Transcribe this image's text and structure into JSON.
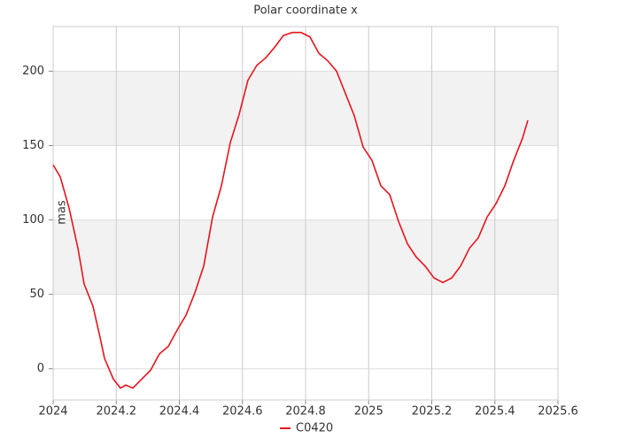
{
  "chart_data": {
    "type": "line",
    "title": "Polar coordinate x",
    "y_label": "mas",
    "x": [
      2024.0,
      2024.0225,
      2024.0505,
      2024.0786,
      2024.0982,
      2024.1263,
      2024.1488,
      2024.1628,
      2024.1909,
      2024.2133,
      2024.2302,
      2024.2526,
      2024.2807,
      2024.3088,
      2024.3368,
      2024.3649,
      2024.393,
      2024.4211,
      2024.4491,
      2024.4772,
      2024.5053,
      2024.5333,
      2024.5614,
      2024.5895,
      2024.6175,
      2024.6456,
      2024.6737,
      2024.7018,
      2024.7298,
      2024.7579,
      2024.786,
      2024.814,
      2024.8421,
      2024.8702,
      2024.8982,
      2024.9263,
      2024.9544,
      2024.9825,
      2025.0105,
      2025.0386,
      2025.0667,
      2025.0947,
      2025.1228,
      2025.1509,
      2025.1789,
      2025.207,
      2025.2351,
      2025.2632,
      2025.2912,
      2025.3193,
      2025.3474,
      2025.3754,
      2025.4035,
      2025.4316,
      2025.4596,
      2025.4877,
      2025.5045
    ],
    "series": [
      {
        "name": "C0420",
        "color": "#e8141c",
        "values": [
          137,
          129,
          108,
          81,
          57,
          42,
          21,
          7,
          -7,
          -13,
          -11,
          -13,
          -7,
          -1,
          10,
          15,
          26,
          36,
          51,
          69,
          102,
          123,
          152,
          171,
          194,
          204,
          209,
          216,
          224,
          226,
          226,
          223,
          212,
          207,
          200,
          185,
          170,
          149,
          140,
          123,
          117,
          99,
          84,
          75,
          69,
          61,
          58,
          61,
          69,
          81,
          88,
          102,
          111,
          123,
          140,
          155,
          167
        ]
      }
    ],
    "xlim": [
      2024,
      2025.6
    ],
    "xticks": [
      2024,
      2024.2,
      2024.4,
      2024.6,
      2024.8,
      2025,
      2025.2,
      2025.4,
      2025.6
    ],
    "ylim": [
      -21,
      230
    ],
    "yticks": [
      0,
      50,
      100,
      150,
      200
    ],
    "grid": true,
    "alternate_bands": true,
    "band_color": "#f2f2f2",
    "legend": "bottom"
  }
}
